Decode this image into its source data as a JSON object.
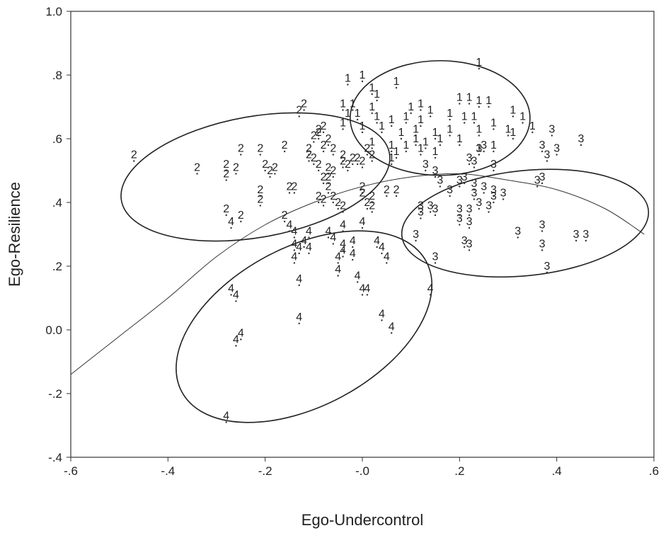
{
  "chart_data": {
    "type": "scatter",
    "title": "",
    "xlabel": "Ego-Undercontrol",
    "ylabel": "Ego-Resilience",
    "xlim": [
      -0.6,
      0.6
    ],
    "ylim": [
      -0.4,
      1.0
    ],
    "x_ticks": [
      -0.6,
      -0.4,
      -0.2,
      0.0,
      0.2,
      0.4,
      0.6
    ],
    "x_tick_labels": [
      "-.6",
      "-.4",
      "-.2",
      "-.0",
      ".2",
      ".4",
      ".6"
    ],
    "y_ticks": [
      -0.4,
      -0.2,
      0.0,
      0.2,
      0.4,
      0.6,
      0.8,
      1.0
    ],
    "y_tick_labels": [
      "-.4",
      "-.2",
      "0.0",
      ".2",
      ".4",
      ".6",
      ".8",
      "1.0"
    ],
    "grid": false,
    "series": [
      {
        "name": "1",
        "points": [
          [
            0.24,
            0.82
          ],
          [
            -0.03,
            0.77
          ],
          [
            0.0,
            0.78
          ],
          [
            0.07,
            0.76
          ],
          [
            0.02,
            0.74
          ],
          [
            0.03,
            0.72
          ],
          [
            -0.04,
            0.69
          ],
          [
            -0.02,
            0.69
          ],
          [
            0.02,
            0.68
          ],
          [
            0.1,
            0.68
          ],
          [
            0.12,
            0.69
          ],
          [
            0.14,
            0.67
          ],
          [
            0.2,
            0.71
          ],
          [
            0.22,
            0.71
          ],
          [
            0.24,
            0.7
          ],
          [
            0.26,
            0.7
          ],
          [
            0.31,
            0.67
          ],
          [
            0.33,
            0.65
          ],
          [
            0.35,
            0.62
          ],
          [
            -0.03,
            0.66
          ],
          [
            -0.01,
            0.66
          ],
          [
            0.03,
            0.65
          ],
          [
            0.06,
            0.64
          ],
          [
            0.09,
            0.65
          ],
          [
            0.12,
            0.64
          ],
          [
            0.18,
            0.66
          ],
          [
            0.21,
            0.65
          ],
          [
            0.23,
            0.65
          ],
          [
            0.27,
            0.63
          ],
          [
            -0.04,
            0.63
          ],
          [
            0.0,
            0.62
          ],
          [
            0.04,
            0.62
          ],
          [
            0.08,
            0.6
          ],
          [
            0.11,
            0.61
          ],
          [
            0.15,
            0.6
          ],
          [
            0.18,
            0.61
          ],
          [
            0.24,
            0.61
          ],
          [
            0.3,
            0.61
          ],
          [
            0.31,
            0.6
          ],
          [
            0.11,
            0.58
          ],
          [
            0.13,
            0.57
          ],
          [
            0.16,
            0.58
          ],
          [
            0.02,
            0.57
          ],
          [
            0.06,
            0.56
          ],
          [
            0.09,
            0.56
          ],
          [
            0.2,
            0.58
          ],
          [
            0.27,
            0.56
          ],
          [
            0.24,
            0.55
          ],
          [
            0.07,
            0.54
          ],
          [
            0.12,
            0.55
          ],
          [
            0.15,
            0.54
          ],
          [
            0.06,
            0.52
          ]
        ]
      },
      {
        "name": "2",
        "points": [
          [
            -0.12,
            0.69
          ],
          [
            -0.13,
            0.67
          ],
          [
            -0.47,
            0.53
          ],
          [
            -0.34,
            0.49
          ],
          [
            -0.28,
            0.5
          ],
          [
            -0.26,
            0.49
          ],
          [
            -0.28,
            0.47
          ],
          [
            -0.25,
            0.55
          ],
          [
            -0.21,
            0.55
          ],
          [
            -0.2,
            0.5
          ],
          [
            -0.18,
            0.49
          ],
          [
            -0.19,
            0.48
          ],
          [
            -0.16,
            0.56
          ],
          [
            -0.21,
            0.42
          ],
          [
            -0.21,
            0.39
          ],
          [
            -0.15,
            0.43
          ],
          [
            -0.14,
            0.43
          ],
          [
            -0.28,
            0.36
          ],
          [
            -0.25,
            0.34
          ],
          [
            -0.16,
            0.34
          ],
          [
            -0.11,
            0.55
          ],
          [
            -0.1,
            0.59
          ],
          [
            -0.09,
            0.61
          ],
          [
            -0.08,
            0.62
          ],
          [
            -0.09,
            0.6
          ],
          [
            -0.07,
            0.58
          ],
          [
            -0.08,
            0.56
          ],
          [
            -0.06,
            0.55
          ],
          [
            -0.11,
            0.53
          ],
          [
            -0.1,
            0.52
          ],
          [
            -0.09,
            0.5
          ],
          [
            -0.07,
            0.49
          ],
          [
            -0.06,
            0.48
          ],
          [
            -0.04,
            0.53
          ],
          [
            -0.04,
            0.51
          ],
          [
            -0.03,
            0.5
          ],
          [
            -0.02,
            0.52
          ],
          [
            -0.01,
            0.52
          ],
          [
            0.0,
            0.51
          ],
          [
            0.01,
            0.55
          ],
          [
            0.02,
            0.53
          ],
          [
            -0.08,
            0.46
          ],
          [
            -0.07,
            0.46
          ],
          [
            -0.07,
            0.43
          ],
          [
            -0.09,
            0.4
          ],
          [
            -0.08,
            0.39
          ],
          [
            -0.06,
            0.4
          ],
          [
            -0.05,
            0.38
          ],
          [
            0.0,
            0.43
          ],
          [
            0.0,
            0.41
          ],
          [
            0.02,
            0.4
          ],
          [
            0.01,
            0.38
          ],
          [
            0.05,
            0.42
          ],
          [
            0.07,
            0.42
          ],
          [
            -0.04,
            0.37
          ],
          [
            0.02,
            0.37
          ]
        ]
      },
      {
        "name": "3",
        "points": [
          [
            0.39,
            0.61
          ],
          [
            0.45,
            0.58
          ],
          [
            0.37,
            0.56
          ],
          [
            0.4,
            0.55
          ],
          [
            0.38,
            0.53
          ],
          [
            0.24,
            0.55
          ],
          [
            0.25,
            0.56
          ],
          [
            0.22,
            0.52
          ],
          [
            0.23,
            0.51
          ],
          [
            0.27,
            0.5
          ],
          [
            0.15,
            0.48
          ],
          [
            0.16,
            0.45
          ],
          [
            0.13,
            0.5
          ],
          [
            0.21,
            0.46
          ],
          [
            0.2,
            0.45
          ],
          [
            0.23,
            0.44
          ],
          [
            0.25,
            0.43
          ],
          [
            0.27,
            0.42
          ],
          [
            0.29,
            0.41
          ],
          [
            0.37,
            0.46
          ],
          [
            0.36,
            0.45
          ],
          [
            0.18,
            0.42
          ],
          [
            0.23,
            0.41
          ],
          [
            0.27,
            0.4
          ],
          [
            0.12,
            0.37
          ],
          [
            0.14,
            0.37
          ],
          [
            0.2,
            0.36
          ],
          [
            0.22,
            0.36
          ],
          [
            0.24,
            0.38
          ],
          [
            0.26,
            0.37
          ],
          [
            0.12,
            0.35
          ],
          [
            0.15,
            0.36
          ],
          [
            0.2,
            0.33
          ],
          [
            0.22,
            0.32
          ],
          [
            0.11,
            0.28
          ],
          [
            0.32,
            0.29
          ],
          [
            0.37,
            0.31
          ],
          [
            0.44,
            0.28
          ],
          [
            0.46,
            0.28
          ],
          [
            0.21,
            0.26
          ],
          [
            0.22,
            0.25
          ],
          [
            0.37,
            0.25
          ],
          [
            0.15,
            0.21
          ],
          [
            0.38,
            0.18
          ]
        ]
      },
      {
        "name": "4",
        "points": [
          [
            -0.27,
            0.32
          ],
          [
            -0.15,
            0.31
          ],
          [
            -0.14,
            0.29
          ],
          [
            -0.11,
            0.29
          ],
          [
            -0.07,
            0.29
          ],
          [
            -0.04,
            0.31
          ],
          [
            -0.14,
            0.25
          ],
          [
            -0.12,
            0.26
          ],
          [
            -0.13,
            0.24
          ],
          [
            -0.11,
            0.24
          ],
          [
            -0.06,
            0.27
          ],
          [
            -0.04,
            0.25
          ],
          [
            -0.02,
            0.26
          ],
          [
            -0.04,
            0.23
          ],
          [
            -0.02,
            0.22
          ],
          [
            -0.05,
            0.21
          ],
          [
            -0.05,
            0.17
          ],
          [
            0.03,
            0.26
          ],
          [
            0.04,
            0.24
          ],
          [
            0.05,
            0.21
          ],
          [
            -0.14,
            0.21
          ],
          [
            0.0,
            0.32
          ],
          [
            -0.13,
            0.14
          ],
          [
            -0.01,
            0.15
          ],
          [
            0.0,
            0.11
          ],
          [
            0.01,
            0.11
          ],
          [
            0.14,
            0.11
          ],
          [
            -0.27,
            0.11
          ],
          [
            -0.26,
            0.09
          ],
          [
            -0.13,
            0.02
          ],
          [
            0.04,
            0.03
          ],
          [
            0.06,
            -0.01
          ],
          [
            -0.25,
            -0.03
          ],
          [
            -0.26,
            -0.05
          ],
          [
            -0.28,
            -0.29
          ]
        ]
      }
    ],
    "ellipses": [
      {
        "cluster": "1",
        "cx": 0.16,
        "cy": 0.665,
        "rx": 0.185,
        "ry": 0.18,
        "angle_deg": 0
      },
      {
        "cluster": "2",
        "cx": -0.22,
        "cy": 0.48,
        "rx": 0.28,
        "ry": 0.19,
        "angle_deg": 10
      },
      {
        "cluster": "3",
        "cx": 0.335,
        "cy": 0.335,
        "rx": 0.255,
        "ry": 0.165,
        "angle_deg": 6
      },
      {
        "cluster": "4",
        "cx": -0.12,
        "cy": 0.01,
        "rx": 0.285,
        "ry": 0.25,
        "angle_deg": 28
      }
    ],
    "boundary_curve": [
      [
        -0.6,
        -0.14
      ],
      [
        -0.5,
        -0.02
      ],
      [
        -0.4,
        0.1
      ],
      [
        -0.3,
        0.23
      ],
      [
        -0.2,
        0.33
      ],
      [
        -0.1,
        0.4
      ],
      [
        0.0,
        0.45
      ],
      [
        0.1,
        0.48
      ],
      [
        0.2,
        0.49
      ],
      [
        0.3,
        0.47
      ],
      [
        0.4,
        0.44
      ],
      [
        0.5,
        0.38
      ],
      [
        0.58,
        0.3
      ]
    ]
  }
}
